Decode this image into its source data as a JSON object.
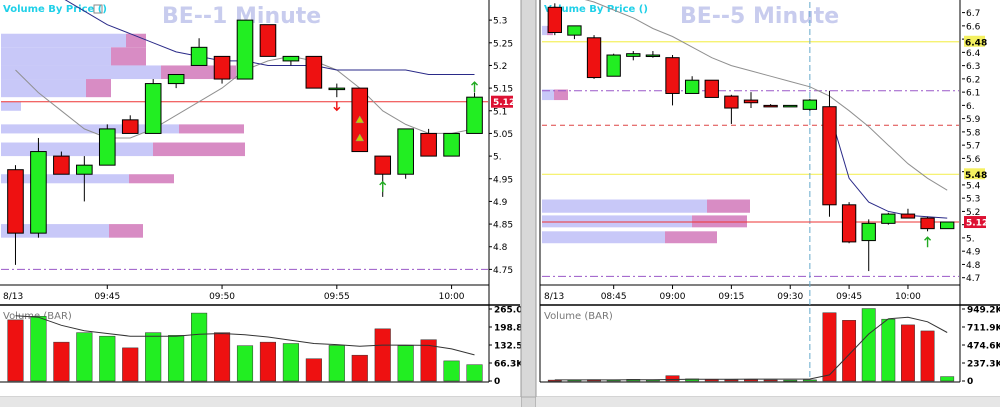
{
  "colors": {
    "up": "#22ee22",
    "down": "#ee1111",
    "vbp_blue": "#c8c8f8",
    "vbp_pink": "#d88cc4",
    "ma_blue": "#2a2a88",
    "ma_gray": "#909090",
    "price_line": "#ee3333",
    "yellow_line": "#f4f060",
    "title_color": "#c8ccee",
    "vbp_title": "#20d0e8"
  },
  "chart_data": [
    {
      "type": "candlestick",
      "title": "BE--1 Minute",
      "overlay_label": "Volume By Price ()",
      "date_label": "8/13",
      "ylim": [
        4.72,
        5.34
      ],
      "y_ticks": [
        "5.3",
        "5.25",
        "5.2",
        "5.15",
        "5.1",
        "5.05",
        "5.",
        "4.95",
        "4.9",
        "4.85",
        "4.8",
        "4.75"
      ],
      "x_ticks": [
        "09:45",
        "09:50",
        "09:55",
        "10:00"
      ],
      "last_price_label": "5.12",
      "last_price": 5.12,
      "dashdot_levels": [
        4.75
      ],
      "candles": [
        {
          "o": 4.97,
          "h": 4.98,
          "l": 4.76,
          "c": 4.83
        },
        {
          "o": 4.83,
          "h": 5.04,
          "l": 4.82,
          "c": 5.01
        },
        {
          "o": 5.0,
          "h": 5.01,
          "l": 4.96,
          "c": 4.96
        },
        {
          "o": 4.96,
          "h": 5.0,
          "l": 4.9,
          "c": 4.98
        },
        {
          "o": 4.98,
          "h": 5.07,
          "l": 4.98,
          "c": 5.06
        },
        {
          "o": 5.08,
          "h": 5.09,
          "l": 5.05,
          "c": 5.05
        },
        {
          "o": 5.05,
          "h": 5.17,
          "l": 5.05,
          "c": 5.16
        },
        {
          "o": 5.16,
          "h": 5.18,
          "l": 5.15,
          "c": 5.18
        },
        {
          "o": 5.2,
          "h": 5.26,
          "l": 5.2,
          "c": 5.24
        },
        {
          "o": 5.22,
          "h": 5.22,
          "l": 5.16,
          "c": 5.17
        },
        {
          "o": 5.17,
          "h": 5.3,
          "l": 5.17,
          "c": 5.3
        },
        {
          "o": 5.29,
          "h": 5.29,
          "l": 5.22,
          "c": 5.22
        },
        {
          "o": 5.21,
          "h": 5.22,
          "l": 5.2,
          "c": 5.22
        },
        {
          "o": 5.22,
          "h": 5.22,
          "l": 5.15,
          "c": 5.15
        },
        {
          "o": 5.15,
          "h": 5.16,
          "l": 5.13,
          "c": 5.15
        },
        {
          "o": 5.15,
          "h": 5.15,
          "l": 5.01,
          "c": 5.01
        },
        {
          "o": 5.0,
          "h": 5.0,
          "l": 4.91,
          "c": 4.96
        },
        {
          "o": 4.96,
          "h": 5.06,
          "l": 4.95,
          "c": 5.06
        },
        {
          "o": 5.05,
          "h": 5.06,
          "l": 5.0,
          "c": 5.0
        },
        {
          "o": 5.0,
          "h": 5.05,
          "l": 5.0,
          "c": 5.05
        },
        {
          "o": 5.05,
          "h": 5.14,
          "l": 5.05,
          "c": 5.13
        }
      ],
      "ma_blue": [
        5.42,
        5.38,
        5.35,
        5.32,
        5.29,
        5.27,
        5.25,
        5.23,
        5.22,
        5.21,
        5.21,
        5.2,
        5.2,
        5.2,
        5.19,
        5.19,
        5.19,
        5.19,
        5.18,
        5.18,
        5.18
      ],
      "ma_gray": [
        5.19,
        5.14,
        5.1,
        5.06,
        5.04,
        5.04,
        5.06,
        5.09,
        5.12,
        5.15,
        5.19,
        5.21,
        5.22,
        5.21,
        5.19,
        5.15,
        5.1,
        5.07,
        5.05,
        5.05,
        5.06
      ],
      "vbp": [
        {
          "lo": 5.24,
          "hi": 5.27,
          "blue": 125,
          "pink": 20
        },
        {
          "lo": 5.2,
          "hi": 5.24,
          "blue": 110,
          "pink": 35
        },
        {
          "lo": 5.17,
          "hi": 5.2,
          "blue": 160,
          "pink": 75
        },
        {
          "lo": 5.13,
          "hi": 5.17,
          "blue": 85,
          "pink": 25
        },
        {
          "lo": 5.1,
          "hi": 5.12,
          "blue": 20,
          "pink": 0
        },
        {
          "lo": 5.05,
          "hi": 5.07,
          "blue": 178,
          "pink": 65
        },
        {
          "lo": 5.0,
          "hi": 5.03,
          "blue": 152,
          "pink": 92
        },
        {
          "lo": 4.94,
          "hi": 4.96,
          "blue": 128,
          "pink": 45
        },
        {
          "lo": 4.82,
          "hi": 4.85,
          "blue": 108,
          "pink": 34
        }
      ],
      "markers": [
        {
          "i": 14,
          "price": 5.11,
          "kind": "arrow-down",
          "color": "#ee1111"
        },
        {
          "i": 15,
          "price": 5.08,
          "kind": "triangle-up",
          "color": "#cccc00"
        },
        {
          "i": 15,
          "price": 5.04,
          "kind": "triangle-up",
          "color": "#cccc00"
        },
        {
          "i": 16,
          "price": 4.93,
          "kind": "arrow-up",
          "color": "#22aa22"
        },
        {
          "i": 20,
          "price": 5.15,
          "kind": "arrow-up",
          "color": "#22aa22"
        }
      ],
      "volume": {
        "title": "Volume (BAR)",
        "ticks": [
          "265.0K",
          "198.8K",
          "132.5K",
          "66.3K",
          "0"
        ],
        "max": 265000,
        "values": [
          225000,
          238000,
          143000,
          178000,
          165000,
          122000,
          178000,
          168000,
          250000,
          178000,
          130000,
          143000,
          138000,
          82000,
          131000,
          95000,
          192000,
          130000,
          152000,
          74000,
          60000
        ],
        "ma": [
          240000,
          235000,
          205000,
          185000,
          175000,
          165000,
          165000,
          165000,
          172000,
          175000,
          170000,
          162000,
          150000,
          138000,
          134000,
          128000,
          132000,
          132000,
          131000,
          118000,
          96000
        ]
      }
    },
    {
      "type": "candlestick",
      "title": "BE--5 Minute",
      "overlay_label": "Volume By Price ()",
      "date_label": "8/13",
      "ylim": [
        4.66,
        6.78
      ],
      "y_ticks": [
        "6.7",
        "6.6",
        "6.5",
        "6.4",
        "6.3",
        "6.2",
        "6.1",
        "6.",
        "5.9",
        "5.8",
        "5.7",
        "5.6",
        "5.5",
        "5.4",
        "5.3",
        "5.2",
        "5.1",
        "5.",
        "4.9",
        "4.8",
        "4.7"
      ],
      "x_ticks": [
        "08:45",
        "09:00",
        "09:15",
        "09:30",
        "09:45",
        "10:00"
      ],
      "last_price_label": "5.12",
      "last_price": 5.12,
      "yellow_levels": [
        6.48,
        5.48
      ],
      "yellow_labels": [
        "6.48",
        "5.48"
      ],
      "dashdot_levels": [
        6.11,
        4.71
      ],
      "dashed_levels": [
        5.85
      ],
      "divider_index": 12,
      "candles": [
        {
          "o": 6.74,
          "h": 6.77,
          "l": 6.53,
          "c": 6.55
        },
        {
          "o": 6.53,
          "h": 6.6,
          "l": 6.5,
          "c": 6.6
        },
        {
          "o": 6.51,
          "h": 6.53,
          "l": 6.2,
          "c": 6.21
        },
        {
          "o": 6.22,
          "h": 6.39,
          "l": 6.22,
          "c": 6.38
        },
        {
          "o": 6.37,
          "h": 6.41,
          "l": 6.34,
          "c": 6.39
        },
        {
          "o": 6.38,
          "h": 6.41,
          "l": 6.36,
          "c": 6.38
        },
        {
          "o": 6.36,
          "h": 6.38,
          "l": 6.0,
          "c": 6.09
        },
        {
          "o": 6.09,
          "h": 6.22,
          "l": 6.09,
          "c": 6.19
        },
        {
          "o": 6.19,
          "h": 6.19,
          "l": 6.06,
          "c": 6.06
        },
        {
          "o": 6.07,
          "h": 6.08,
          "l": 5.86,
          "c": 5.98
        },
        {
          "o": 6.04,
          "h": 6.1,
          "l": 5.98,
          "c": 6.02
        },
        {
          "o": 6.0,
          "h": 6.01,
          "l": 5.99,
          "c": 5.99
        },
        {
          "o": 5.99,
          "h": 6.0,
          "l": 5.99,
          "c": 6.0
        },
        {
          "o": 5.97,
          "h": 6.05,
          "l": 5.96,
          "c": 6.04
        },
        {
          "o": 5.99,
          "h": 6.11,
          "l": 5.16,
          "c": 5.25
        },
        {
          "o": 5.25,
          "h": 5.27,
          "l": 4.96,
          "c": 4.97
        },
        {
          "o": 4.98,
          "h": 5.14,
          "l": 4.75,
          "c": 5.11
        },
        {
          "o": 5.11,
          "h": 5.19,
          "l": 5.1,
          "c": 5.18
        },
        {
          "o": 5.18,
          "h": 5.22,
          "l": 5.15,
          "c": 5.15
        },
        {
          "o": 5.15,
          "h": 5.16,
          "l": 5.05,
          "c": 5.07
        },
        {
          "o": 5.07,
          "h": 5.12,
          "l": 5.07,
          "c": 5.12
        }
      ],
      "ma_gray": [
        6.85,
        6.82,
        6.78,
        6.72,
        6.66,
        6.58,
        6.52,
        6.44,
        6.36,
        6.3,
        6.26,
        6.22,
        6.18,
        6.14,
        6.07,
        5.96,
        5.84,
        5.7,
        5.56,
        5.45,
        5.36
      ],
      "ma_blue": [
        null,
        null,
        null,
        null,
        null,
        null,
        null,
        null,
        null,
        null,
        null,
        null,
        null,
        null,
        5.95,
        5.45,
        5.27,
        5.2,
        5.17,
        5.16,
        5.15
      ],
      "vbp": [
        {
          "lo": 6.53,
          "hi": 6.6,
          "blue": 5,
          "pink": 6
        },
        {
          "lo": 6.04,
          "hi": 6.12,
          "blue": 12,
          "pink": 14
        },
        {
          "lo": 5.19,
          "hi": 5.29,
          "blue": 165,
          "pink": 43
        },
        {
          "lo": 5.08,
          "hi": 5.17,
          "blue": 150,
          "pink": 55
        },
        {
          "lo": 4.96,
          "hi": 5.05,
          "blue": 123,
          "pink": 52
        }
      ],
      "markers": [
        {
          "i": 19,
          "price": 4.96,
          "kind": "arrow-up",
          "color": "#22aa22"
        }
      ],
      "volume": {
        "title": "Volume (BAR)",
        "ticks": [
          "949.2K",
          "711.9K",
          "474.6K",
          "237.3K",
          "0"
        ],
        "max": 949200,
        "values": [
          12000,
          15000,
          18000,
          15000,
          22000,
          14000,
          70000,
          28000,
          20000,
          15000,
          18000,
          14000,
          12000,
          15000,
          900000,
          800000,
          955000,
          815000,
          740000,
          660000,
          58000
        ],
        "ma": [
          14000,
          14000,
          15000,
          15000,
          16000,
          17000,
          20000,
          22000,
          24000,
          24000,
          25000,
          25000,
          25000,
          26000,
          80000,
          350000,
          620000,
          820000,
          840000,
          780000,
          640000
        ]
      }
    }
  ]
}
